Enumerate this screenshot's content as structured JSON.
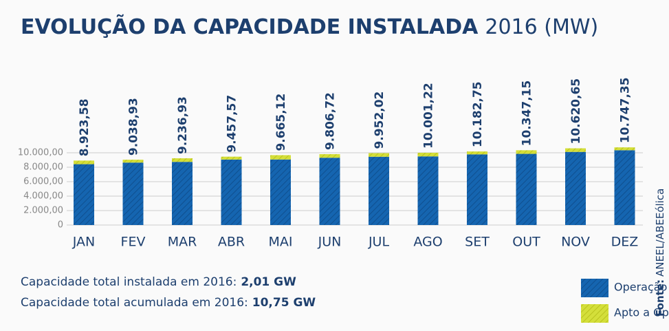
{
  "chart_data": {
    "type": "bar",
    "title": "EVOLUÇÃO DA CAPACIDADE INSTALADA",
    "subtitle": "2016 (MW)",
    "categories": [
      "JAN",
      "FEV",
      "MAR",
      "ABR",
      "MAI",
      "JUN",
      "JUL",
      "AGO",
      "SET",
      "OUT",
      "NOV",
      "DEZ"
    ],
    "series": [
      {
        "name": "Operação",
        "color": "#1565b0",
        "values": [
          8420,
          8640,
          8740,
          9060,
          9070,
          9310,
          9450,
          9500,
          9780,
          9850,
          10120,
          10350
        ]
      },
      {
        "name": "Apto a Operar",
        "color": "#d4df3a",
        "values": [
          500,
          400,
          500,
          400,
          600,
          500,
          500,
          500,
          400,
          500,
          500,
          400
        ]
      }
    ],
    "totals": [
      8923.58,
      9038.93,
      9236.93,
      9457.57,
      9665.12,
      9806.72,
      9952.02,
      10001.22,
      10182.75,
      10347.15,
      10620.65,
      10747.35
    ],
    "total_labels": [
      "8.923,58",
      "9.038,93",
      "9.236,93",
      "9.457,57",
      "9.665,12",
      "9.806,72",
      "9.952,02",
      "10.001,22",
      "10.182,75",
      "10.347,15",
      "10.620,65",
      "10.747,35"
    ],
    "ylim": [
      0,
      10000
    ],
    "yticks": [
      0,
      {
        "value": 2000,
        "label": "2.000,00"
      },
      {
        "value": 4000,
        "label": "4.000,00"
      },
      {
        "value": 6000,
        "label": "6.000,00"
      },
      {
        "value": 8000,
        "label": "8.000,00"
      },
      {
        "value": 10000,
        "label": "10.000,00"
      }
    ],
    "grid": true,
    "notes": [
      {
        "text": "Capacidade total instalada em 2016:",
        "value": "2,01 GW"
      },
      {
        "text": "Capacidade total acumulada em 2016:",
        "value": "10,75 GW"
      }
    ],
    "source": {
      "label": "Fonte:",
      "text": "ANEEL/ABEEólica"
    }
  }
}
